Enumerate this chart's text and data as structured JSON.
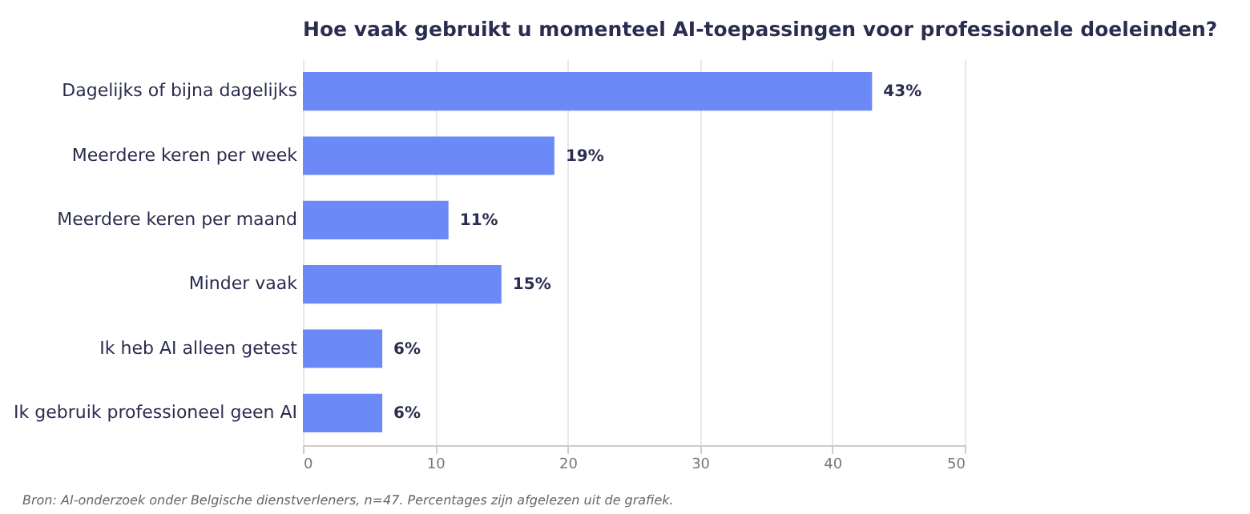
{
  "chart_data": {
    "type": "bar",
    "orientation": "horizontal",
    "title": "Hoe vaak gebruikt u momenteel AI-toepassingen voor professionele doeleinden?",
    "categories": [
      "Dagelijks of bijna dagelijks",
      "Meerdere keren per week",
      "Meerdere keren per maand",
      "Minder vaak",
      "Ik heb AI alleen getest",
      "Ik gebruik professioneel geen AI"
    ],
    "values": [
      43,
      19,
      11,
      15,
      6,
      6
    ],
    "value_labels": [
      "43%",
      "19%",
      "11%",
      "15%",
      "6%",
      "6%"
    ],
    "color": "#6b8af7",
    "xlim": [
      0,
      50
    ],
    "xticks": [
      0,
      10,
      20,
      30,
      40,
      50
    ],
    "grid": "x",
    "annotations": [
      "Bron: AI-onderzoek onder Belgische dienstverleners, n=47. Percentages zijn afgelezen uit de grafiek."
    ]
  }
}
